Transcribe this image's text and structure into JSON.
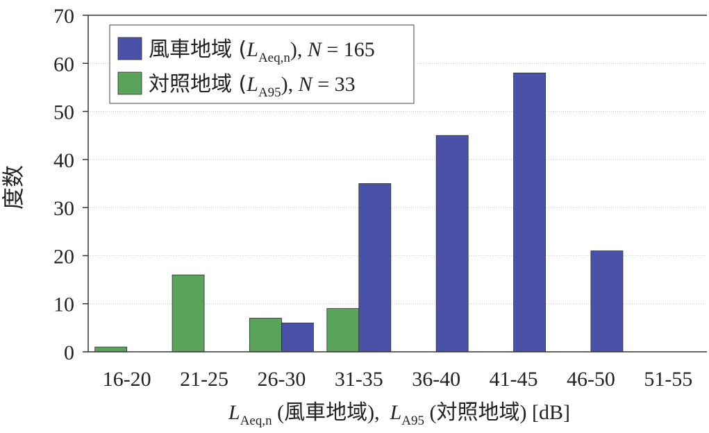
{
  "chart_data": {
    "type": "bar",
    "categories": [
      "16-20",
      "21-25",
      "26-30",
      "31-35",
      "36-40",
      "41-45",
      "46-50",
      "51-55"
    ],
    "series": [
      {
        "name": "対照地域 (LA95), N = 33",
        "legend": {
          "prefix": "対照地域 (",
          "symbol": "L",
          "sub": "A95",
          "suffix": "), ",
          "n_symbol": "N",
          "n_text": " = 33"
        },
        "color": "#5aa35a",
        "values": [
          1,
          16,
          7,
          9,
          0,
          0,
          0,
          0
        ]
      },
      {
        "name": "風車地域 (LAeq,n), N = 165",
        "legend": {
          "prefix": "風車地域 (",
          "symbol": "L",
          "sub": "Aeq,n",
          "suffix": "), ",
          "n_symbol": "N",
          "n_text": " = 165"
        },
        "color": "#4a52a8",
        "values": [
          0,
          0,
          6,
          35,
          45,
          58,
          21,
          0
        ]
      }
    ],
    "ylabel": "度数",
    "xlabel": {
      "part1_symbol": "L",
      "part1_sub": "Aeq,n",
      "part1_text": " (風車地域),",
      "part2_symbol": "L",
      "part2_sub": "A95",
      "part2_text": " (対照地域) [dB]"
    },
    "yticks": [
      0,
      10,
      20,
      30,
      40,
      50,
      60,
      70
    ],
    "ylim": [
      0,
      70
    ],
    "grid": true,
    "legend_position": "top-left"
  }
}
